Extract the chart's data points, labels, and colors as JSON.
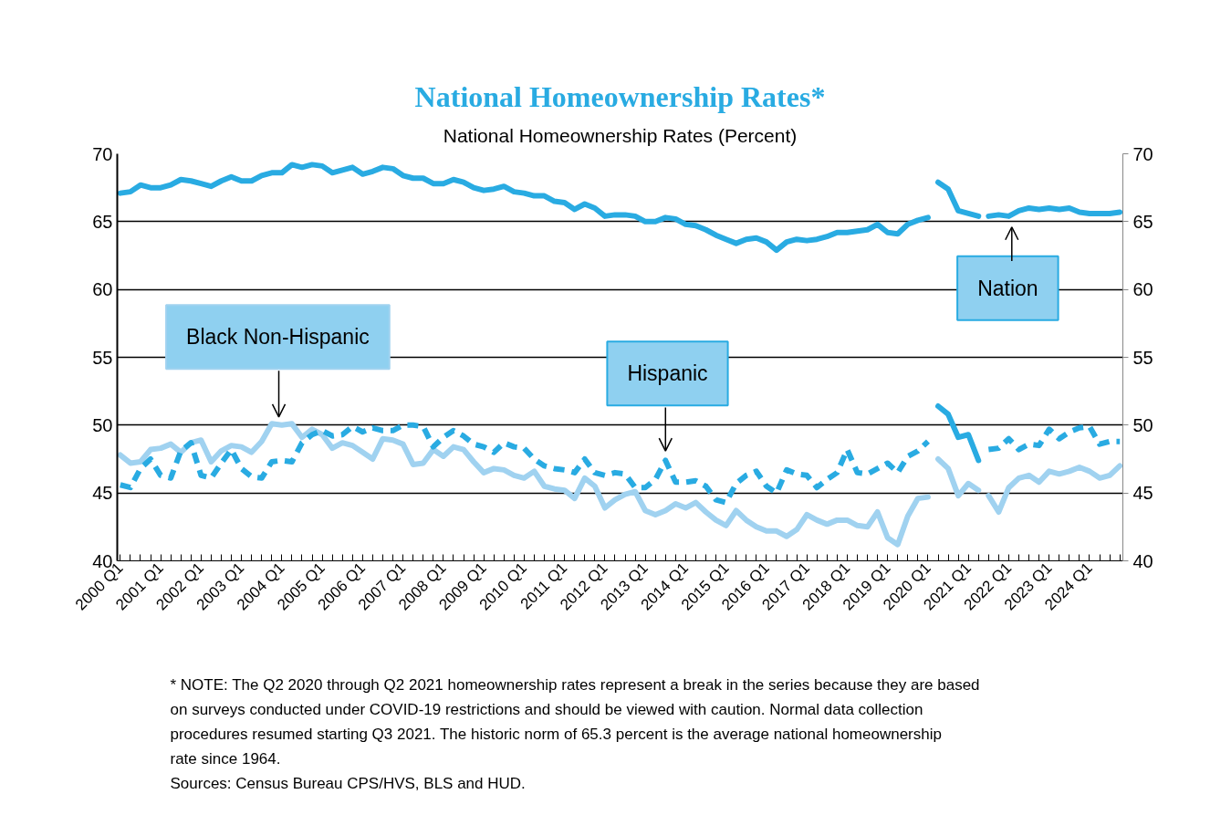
{
  "chart_data": {
    "type": "line",
    "title": "National Homeownership Rates*",
    "subtitle": "National Homeownership Rates (Percent)",
    "categories": [
      "2000 Q1",
      null,
      null,
      null,
      "2001 Q1",
      null,
      null,
      null,
      "2002 Q1",
      null,
      null,
      null,
      "2003 Q1",
      null,
      null,
      null,
      "2004 Q1",
      null,
      null,
      null,
      "2005 Q1",
      null,
      null,
      null,
      "2006 Q1",
      null,
      null,
      null,
      "2007 Q1",
      null,
      null,
      null,
      "2008 Q1",
      null,
      null,
      null,
      "2009 Q1",
      null,
      null,
      null,
      "2010 Q1",
      null,
      null,
      null,
      "2011 Q1",
      null,
      null,
      null,
      "2012 Q1",
      null,
      null,
      null,
      "2013 Q1",
      null,
      null,
      null,
      "2014 Q1",
      null,
      null,
      null,
      "2015 Q1",
      null,
      null,
      null,
      "2016 Q1",
      null,
      null,
      null,
      "2017 Q1",
      null,
      null,
      null,
      "2018 Q1",
      null,
      null,
      null,
      "2019 Q1",
      null,
      null,
      null,
      "2020 Q1",
      null,
      null,
      null,
      "2021 Q1",
      null,
      null,
      null,
      "2022 Q1",
      null,
      null,
      null,
      "2023 Q1",
      null,
      null,
      null,
      "2024 Q1",
      null,
      null,
      null
    ],
    "ylim": [
      40,
      70
    ],
    "yticks": [
      40,
      45,
      50,
      55,
      60,
      65,
      70
    ],
    "y2lim": [
      40,
      70
    ],
    "y2ticks": [
      40,
      45,
      50,
      55,
      60,
      65,
      70
    ],
    "grid": "y",
    "series": [
      {
        "name": "Black Non-Hispanic",
        "color": "#a0d2f0",
        "line_style": "solid",
        "values": [
          47.8,
          47.2,
          47.3,
          48.2,
          48.3,
          48.6,
          48.0,
          48.7,
          48.9,
          47.3,
          48.1,
          48.5,
          48.4,
          48.0,
          48.8,
          50.1,
          50.0,
          50.1,
          49.1,
          49.7,
          49.3,
          48.3,
          48.7,
          48.5,
          48.0,
          47.5,
          49.0,
          48.9,
          48.6,
          47.1,
          47.2,
          48.2,
          47.7,
          48.4,
          48.2,
          47.3,
          46.5,
          46.8,
          46.7,
          46.3,
          46.1,
          46.6,
          45.5,
          45.3,
          45.2,
          44.6,
          46.1,
          45.5,
          43.9,
          44.5,
          44.9,
          45.1,
          43.7,
          43.4,
          43.7,
          44.2,
          43.9,
          44.3,
          43.6,
          43.0,
          42.6,
          43.7,
          43.0,
          42.5,
          42.2,
          42.2,
          41.8,
          42.3,
          43.4,
          43.0,
          42.7,
          43.0,
          43.0,
          42.6,
          42.5,
          43.6,
          41.7,
          41.2,
          43.3,
          44.6,
          44.7,
          null,
          null,
          null,
          null,
          null,
          44.8,
          43.6,
          45.4,
          46.1,
          46.3,
          45.8,
          46.6,
          46.4,
          46.6,
          46.9,
          46.6,
          46.1,
          46.3,
          47.0
        ]
      },
      {
        "color": "#a0d2f0",
        "line_style": "solid",
        "values": [
          null,
          null,
          null,
          null,
          null,
          null,
          null,
          null,
          null,
          null,
          null,
          null,
          null,
          null,
          null,
          null,
          null,
          null,
          null,
          null,
          null,
          null,
          null,
          null,
          null,
          null,
          null,
          null,
          null,
          null,
          null,
          null,
          null,
          null,
          null,
          null,
          null,
          null,
          null,
          null,
          null,
          null,
          null,
          null,
          null,
          null,
          null,
          null,
          null,
          null,
          null,
          null,
          null,
          null,
          null,
          null,
          null,
          null,
          null,
          null,
          null,
          null,
          null,
          null,
          null,
          null,
          null,
          null,
          null,
          null,
          null,
          null,
          null,
          null,
          null,
          null,
          null,
          null,
          null,
          null,
          null,
          47.5,
          46.8,
          44.8,
          45.7,
          45.2,
          null,
          null,
          null,
          null,
          null,
          null,
          null,
          null,
          null,
          null,
          null,
          null,
          null,
          null
        ]
      },
      {
        "name": "Hispanic",
        "color": "#29abe2",
        "line_style": "dashed",
        "values": [
          45.6,
          45.4,
          46.8,
          47.5,
          46.3,
          46.1,
          48.1,
          48.7,
          46.3,
          46.1,
          47.2,
          48.2,
          46.8,
          46.2,
          46.1,
          47.3,
          47.4,
          47.3,
          48.7,
          49.3,
          49.6,
          49.2,
          49.3,
          49.9,
          49.5,
          49.8,
          49.6,
          49.6,
          50.0,
          50.0,
          49.9,
          48.4,
          49.1,
          49.6,
          49.2,
          48.6,
          48.4,
          48.0,
          48.7,
          48.4,
          48.3,
          47.5,
          47.0,
          46.8,
          46.7,
          46.5,
          47.5,
          46.5,
          46.3,
          46.5,
          46.4,
          45.4,
          45.4,
          46.0,
          47.4,
          45.8,
          45.8,
          45.9,
          45.5,
          44.5,
          44.3,
          45.7,
          46.3,
          46.6,
          45.5,
          45.0,
          46.7,
          46.4,
          46.3,
          45.4,
          46.0,
          46.5,
          48.2,
          46.5,
          46.4,
          46.8,
          47.2,
          46.5,
          47.7,
          48.1,
          48.8,
          null,
          null,
          null,
          null,
          null,
          48.2,
          48.3,
          49.0,
          48.2,
          48.6,
          48.5,
          49.7,
          49.0,
          49.5,
          49.8,
          49.9,
          48.6,
          48.8,
          48.8
        ]
      },
      {
        "color": "#29abe2",
        "line_style": "solid",
        "values": [
          null,
          null,
          null,
          null,
          null,
          null,
          null,
          null,
          null,
          null,
          null,
          null,
          null,
          null,
          null,
          null,
          null,
          null,
          null,
          null,
          null,
          null,
          null,
          null,
          null,
          null,
          null,
          null,
          null,
          null,
          null,
          null,
          null,
          null,
          null,
          null,
          null,
          null,
          null,
          null,
          null,
          null,
          null,
          null,
          null,
          null,
          null,
          null,
          null,
          null,
          null,
          null,
          null,
          null,
          null,
          null,
          null,
          null,
          null,
          null,
          null,
          null,
          null,
          null,
          null,
          null,
          null,
          null,
          null,
          null,
          null,
          null,
          null,
          null,
          null,
          null,
          null,
          null,
          null,
          null,
          null,
          51.4,
          50.8,
          49.1,
          49.3,
          47.4,
          null,
          null,
          null,
          null,
          null,
          null,
          null,
          null,
          null,
          null,
          null,
          null,
          null,
          null
        ]
      },
      {
        "name": "Nation",
        "color": "#29abe2",
        "line_style": "solid",
        "values": [
          67.1,
          67.2,
          67.7,
          67.5,
          67.5,
          67.7,
          68.1,
          68.0,
          67.8,
          67.6,
          68.0,
          68.3,
          68.0,
          68.0,
          68.4,
          68.6,
          68.6,
          69.2,
          69.0,
          69.2,
          69.1,
          68.6,
          68.8,
          69.0,
          68.5,
          68.7,
          69.0,
          68.9,
          68.4,
          68.2,
          68.2,
          67.8,
          67.8,
          68.1,
          67.9,
          67.5,
          67.3,
          67.4,
          67.6,
          67.2,
          67.1,
          66.9,
          66.9,
          66.5,
          66.4,
          65.9,
          66.3,
          66.0,
          65.4,
          65.5,
          65.5,
          65.4,
          65.0,
          65.0,
          65.3,
          65.2,
          64.8,
          64.7,
          64.4,
          64.0,
          63.7,
          63.4,
          63.7,
          63.8,
          63.5,
          62.9,
          63.5,
          63.7,
          63.6,
          63.7,
          63.9,
          64.2,
          64.2,
          64.3,
          64.4,
          64.8,
          64.2,
          64.1,
          64.8,
          65.1,
          65.3,
          null,
          null,
          null,
          null,
          null,
          65.4,
          65.5,
          65.4,
          65.8,
          66.0,
          65.9,
          66.0,
          65.9,
          66.0,
          65.7,
          65.6,
          65.6,
          65.6,
          65.7
        ]
      },
      {
        "color": "#29abe2",
        "line_style": "solid",
        "values": [
          null,
          null,
          null,
          null,
          null,
          null,
          null,
          null,
          null,
          null,
          null,
          null,
          null,
          null,
          null,
          null,
          null,
          null,
          null,
          null,
          null,
          null,
          null,
          null,
          null,
          null,
          null,
          null,
          null,
          null,
          null,
          null,
          null,
          null,
          null,
          null,
          null,
          null,
          null,
          null,
          null,
          null,
          null,
          null,
          null,
          null,
          null,
          null,
          null,
          null,
          null,
          null,
          null,
          null,
          null,
          null,
          null,
          null,
          null,
          null,
          null,
          null,
          null,
          null,
          null,
          null,
          null,
          null,
          null,
          null,
          null,
          null,
          null,
          null,
          null,
          null,
          null,
          null,
          null,
          null,
          null,
          67.9,
          67.4,
          65.8,
          65.6,
          65.4,
          null,
          null,
          null,
          null,
          null,
          null,
          null,
          null,
          null,
          null,
          null,
          null,
          null,
          null
        ]
      }
    ],
    "annotations": [
      "* NOTE: The Q2 2020 through Q2 2021 homeownership rates represent a break in the series because they are based on surveys conducted under COVID-19 restrictions and should be viewed with caution. Normal data collection procedures resumed starting Q3 2021. The historic norm of 65.3 percent is the average national homeownership rate since 1964.",
      "Sources: Census Bureau CPS/HVS, BLS and HUD."
    ]
  }
}
